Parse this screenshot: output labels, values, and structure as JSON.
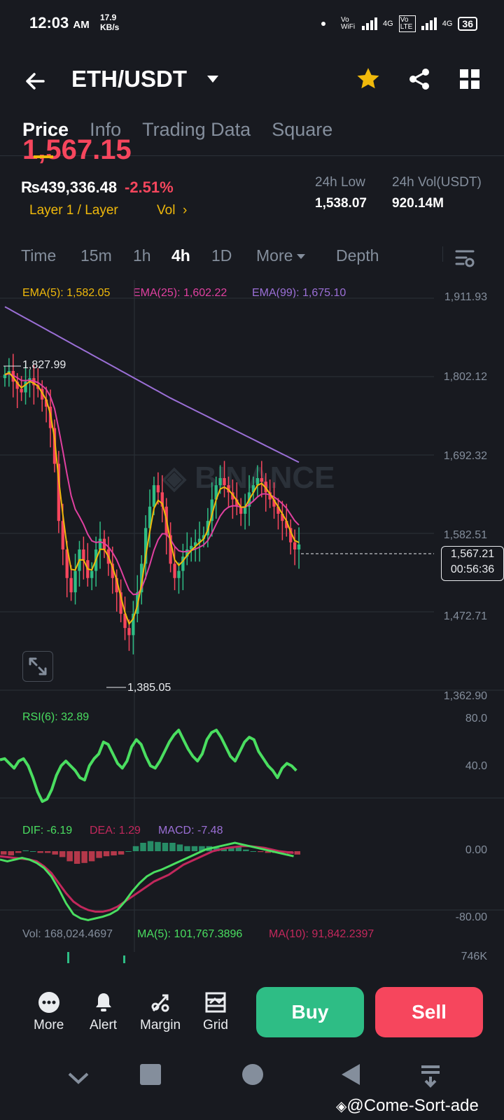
{
  "status_bar": {
    "time": "12:03",
    "ampm": "AM",
    "speed_value": "17.9",
    "speed_unit": "KB/s",
    "wifi_label": "Vo WiFi",
    "lte_label": "Vo LTE",
    "net1": "4G",
    "net2": "4G",
    "battery": "36"
  },
  "header": {
    "pair": "ETH/USDT",
    "back_icon": "arrow-left-icon",
    "star_icon": "star-icon",
    "share_icon": "share-icon",
    "grid_icon": "grid-icon"
  },
  "tabs": [
    "Price",
    "Info",
    "Trading Data",
    "Square"
  ],
  "price_info": {
    "last_price_partial": "1,567.15",
    "fiat_price": "₨439,336.48",
    "change_pct": "-2.51%",
    "tag_layer": "Layer 1 / Layer",
    "tag_vol": "Vol",
    "tag_more": "›",
    "low_label": "24h Low",
    "low_value": "1,538.07",
    "vol_label": "24h Vol(USDT)",
    "vol_value": "920.14M"
  },
  "intervals": {
    "time": "Time",
    "m15": "15m",
    "h1": "1h",
    "h4": "4h",
    "d1": "1D",
    "more": "More",
    "depth": "Depth"
  },
  "indicators": {
    "ema5": "EMA(5): 1,582.05",
    "ema25": "EMA(25): 1,602.22",
    "ema99": "EMA(99): 1,675.10",
    "rsi": "RSI(6): 32.89",
    "dif": "DIF: -6.19",
    "dea": "DEA: 1.29",
    "macd": "MACD: -7.48",
    "vol": "Vol: 168,024.4697",
    "vol_ma5": "MA(5): 101,767.3896",
    "vol_ma10": "MA(10): 91,842.2397"
  },
  "price_axis": [
    "1,911.93",
    "1,802.12",
    "1,692.32",
    "1,582.51",
    "1,472.71",
    "1,362.90"
  ],
  "rsi_axis": [
    "80.0",
    "40.0"
  ],
  "macd_axis": [
    "0.00",
    "-80.00"
  ],
  "vol_axis": [
    "746K"
  ],
  "annotations": {
    "high": "1,827.99",
    "low": "1,385.05",
    "current_price": "1,567.21",
    "countdown": "00:56:36",
    "brand_watermark": "BINANCE"
  },
  "colors": {
    "up": "#2ebd85",
    "down": "#f6465d",
    "ema5": "#f0b90b",
    "ema25": "#e040a0",
    "ema99": "#9b6fd6",
    "accent": "#f0b90b"
  },
  "bottom_tools": [
    {
      "label": "More",
      "icon": "dots-icon"
    },
    {
      "label": "Alert",
      "icon": "bell-icon"
    },
    {
      "label": "Margin",
      "icon": "percent-icon"
    },
    {
      "label": "Grid",
      "icon": "grid-bot-icon"
    }
  ],
  "actions": {
    "buy": "Buy",
    "sell": "Sell"
  },
  "watermark": "@Come-Sort-ade"
}
